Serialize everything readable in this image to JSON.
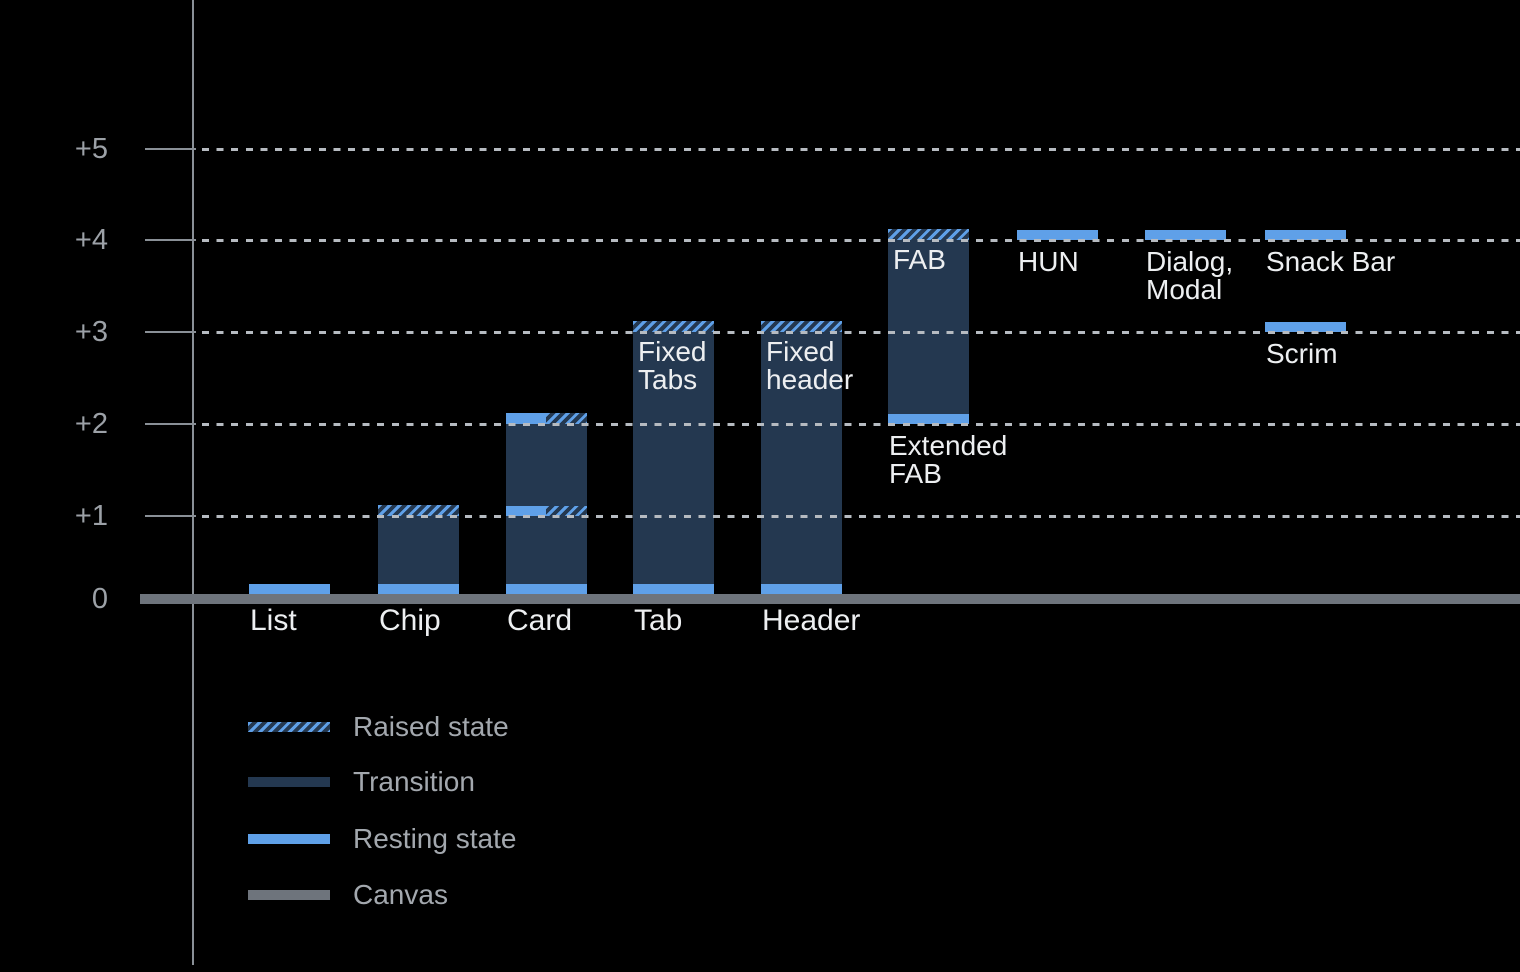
{
  "chart_data": {
    "type": "bar",
    "title": "",
    "subtitle": "",
    "xlabel": "",
    "ylabel": "",
    "ylim": [
      0,
      5
    ],
    "grid": "dotted-horizontal",
    "legend_position": "bottom-left",
    "y_axis": {
      "ticks": [
        {
          "label": "+5",
          "value": 5
        },
        {
          "label": "+4",
          "value": 4
        },
        {
          "label": "+3",
          "value": 3
        },
        {
          "label": "+2",
          "value": 2
        },
        {
          "label": "+1",
          "value": 1
        },
        {
          "label": "0",
          "value": 0
        }
      ]
    },
    "components": [
      {
        "name": "list",
        "col": 0,
        "axis_label": "List",
        "segments": [
          {
            "type": "resting",
            "level": 0
          }
        ]
      },
      {
        "name": "chip",
        "col": 1,
        "axis_label": "Chip",
        "segments": [
          {
            "type": "resting",
            "level": 0
          },
          {
            "type": "transition",
            "from": 0,
            "to": 1
          },
          {
            "type": "raised",
            "level": 1
          }
        ]
      },
      {
        "name": "card",
        "col": 2,
        "axis_label": "Card",
        "segments": [
          {
            "type": "resting",
            "level": 0
          },
          {
            "type": "transition",
            "from": 0,
            "to": 1
          },
          {
            "type": "split",
            "level": 1
          },
          {
            "type": "transition",
            "from": 1,
            "to": 2
          },
          {
            "type": "split",
            "level": 2
          }
        ]
      },
      {
        "name": "tab",
        "col": 3,
        "axis_label": "Tab",
        "inner_label_lines": [
          "Fixed",
          "Tabs"
        ],
        "segments": [
          {
            "type": "resting",
            "level": 0
          },
          {
            "type": "transition",
            "from": 0,
            "to": 3
          },
          {
            "type": "raised",
            "level": 3
          }
        ]
      },
      {
        "name": "header",
        "col": 4,
        "axis_label": "Header",
        "inner_label_lines": [
          "Fixed",
          "header"
        ],
        "segments": [
          {
            "type": "resting",
            "level": 0
          },
          {
            "type": "transition",
            "from": 0,
            "to": 3
          },
          {
            "type": "raised",
            "level": 3
          }
        ]
      },
      {
        "name": "fab",
        "col": 5,
        "inner_label_lines": [
          "FAB"
        ],
        "below_label_lines": [
          "Extended",
          "FAB"
        ],
        "segments": [
          {
            "type": "resting",
            "level": 2
          },
          {
            "type": "transition",
            "from": 2,
            "to": 4
          },
          {
            "type": "raised",
            "level": 4
          }
        ]
      },
      {
        "name": "hun",
        "col": 6,
        "below_label_lines": [
          "HUN"
        ],
        "segments": [
          {
            "type": "resting",
            "level": 4
          }
        ]
      },
      {
        "name": "dialog-modal",
        "col": 7,
        "below_label_lines": [
          "Dialog,",
          "Modal"
        ],
        "segments": [
          {
            "type": "resting",
            "level": 4
          }
        ]
      },
      {
        "name": "snack-bar",
        "col": 8,
        "below_label_lines": [
          "Snack Bar"
        ],
        "segments": [
          {
            "type": "resting",
            "level": 4
          }
        ]
      },
      {
        "name": "scrim",
        "col": 8,
        "below_label_lines": [
          "Scrim"
        ],
        "segments": [
          {
            "type": "resting",
            "level": 3
          }
        ]
      }
    ],
    "legend": [
      {
        "key": "raised",
        "label": "Raised state"
      },
      {
        "key": "transition",
        "label": "Transition"
      },
      {
        "key": "resting",
        "label": "Resting state"
      },
      {
        "key": "canvas",
        "label": "Canvas"
      }
    ]
  },
  "colors": {
    "background": "#000000",
    "resting": "#5FA0E8",
    "transition": "#243850",
    "canvas": "#6E747C",
    "axis": "#8A9097",
    "gridline": "#B6BBC1",
    "y_label": "#9CA1A7",
    "component_label": "#EDEFF1",
    "legend_label": "#A3A8AE"
  }
}
